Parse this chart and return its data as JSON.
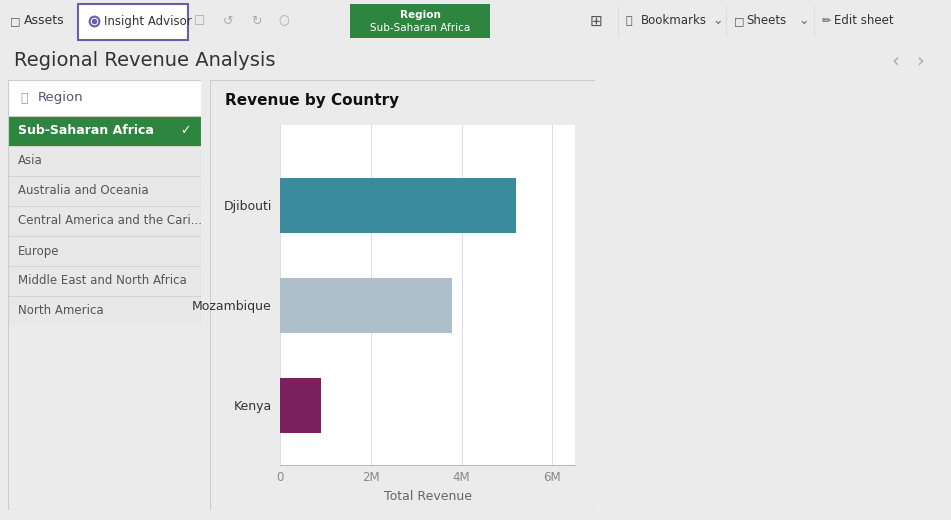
{
  "title": "Regional Revenue Analysis",
  "chart_title": "Revenue by Country",
  "bg_color": "#ebebeb",
  "panel_bg": "#ffffff",
  "sidebar_bg": "#ffffff",
  "topbar_bg": "#ffffff",
  "topbar_border": "#dddddd",
  "filter_label": "Region",
  "filter_selected": "Sub-Saharan Africa",
  "filter_items": [
    "Sub-Saharan Africa",
    "Asia",
    "Australia and Oceania",
    "Central America and the Cari...",
    "Europe",
    "Middle East and North Africa",
    "North America"
  ],
  "unselected_item_bg": "#e8e8e8",
  "selected_color": "#2e8540",
  "selected_text_color": "#ffffff",
  "region_pill_bg": "#2e8540",
  "region_pill_label": "Region",
  "region_pill_value": "Sub-Saharan Africa",
  "countries": [
    "Djibouti",
    "Mozambique",
    "Kenya"
  ],
  "values": [
    5200000,
    3800000,
    900000
  ],
  "bar_colors": [
    "#3b8b9e",
    "#aebfcc",
    "#7b1f5e"
  ],
  "x_ticks": [
    0,
    2000000,
    4000000,
    6000000
  ],
  "x_tick_labels": [
    "0",
    "2M",
    "4M",
    "6M"
  ],
  "xlabel": "Total Revenue",
  "xlim_max": 6500000,
  "fig_width": 9.51,
  "fig_height": 5.2,
  "dpi": 100
}
